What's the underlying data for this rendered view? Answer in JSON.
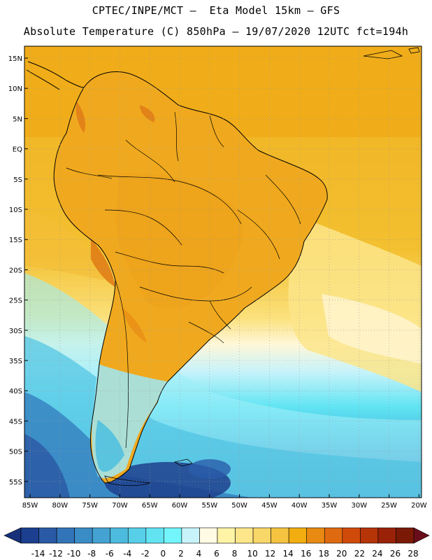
{
  "header": {
    "line1": "CPTEC/INPE/MCT –  Eta Model 15km – GFS",
    "line2": "Absolute Temperature (C) 850hPa – 19/07/2020 12UTC fct=194h"
  },
  "map": {
    "lat_labels": [
      "15N",
      "10N",
      "5N",
      "EQ",
      "5S",
      "10S",
      "15S",
      "20S",
      "25S",
      "30S",
      "35S",
      "40S",
      "45S",
      "50S",
      "55S"
    ],
    "lon_labels": [
      "85W",
      "80W",
      "75W",
      "70W",
      "65W",
      "60W",
      "55W",
      "50W",
      "45W",
      "40W",
      "35W",
      "30W",
      "25W",
      "20W"
    ]
  },
  "colorbar": {
    "labels": [
      "-14",
      "-12",
      "-10",
      "-8",
      "-6",
      "-4",
      "-2",
      "0",
      "2",
      "4",
      "6",
      "8",
      "10",
      "12",
      "14",
      "16",
      "18",
      "20",
      "22",
      "24",
      "26",
      "28"
    ],
    "colors": [
      "#1c3f8f",
      "#2a5aa6",
      "#3274b8",
      "#3a8cc6",
      "#44a3d2",
      "#4cbbde",
      "#58cfe8",
      "#62e3f2",
      "#72f5fb",
      "#c8f3fa",
      "#fffbe4",
      "#fff3a6",
      "#fde68a",
      "#f8d668",
      "#f5c340",
      "#f2ad10",
      "#e98a12",
      "#e06a10",
      "#d04a0a",
      "#b53408",
      "#9a2208",
      "#7a1a06"
    ],
    "under_color": "#16307a",
    "over_color": "#6a0d1a"
  }
}
